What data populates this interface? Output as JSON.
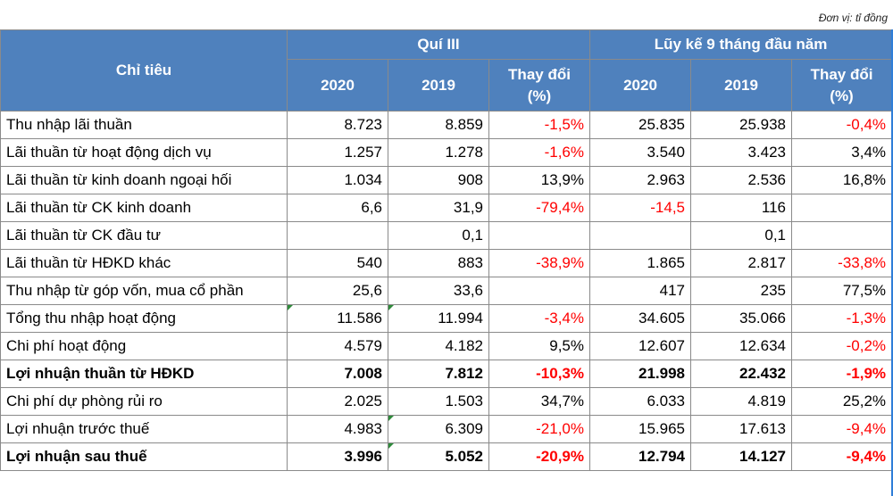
{
  "unit_note": "Đơn vị: tỉ đồng",
  "header": {
    "indicator": "Chỉ tiêu",
    "group_q3": "Quí III",
    "group_9m": "Lũy kế 9 tháng đầu năm",
    "q3_2020": "2020",
    "q3_2019": "2019",
    "q3_change_line1": "Thay đổi",
    "q3_change_line2": "(%)",
    "ytd_2020": "2020",
    "ytd_2019": "2019",
    "ytd_change_line1": "Thay đổi",
    "ytd_change_line2": "(%)"
  },
  "rows": [
    {
      "label": "Thu nhập lãi thuần",
      "q3_2020": "8.723",
      "q3_2019": "8.859",
      "q3_change": "-1,5%",
      "ytd_2020": "25.835",
      "ytd_2019": "25.938",
      "ytd_change": "-0,4%"
    },
    {
      "label": "Lãi thuần từ hoạt động dịch vụ",
      "q3_2020": "1.257",
      "q3_2019": "1.278",
      "q3_change": "-1,6%",
      "ytd_2020": "3.540",
      "ytd_2019": "3.423",
      "ytd_change": "3,4%"
    },
    {
      "label": "Lãi thuần từ kinh doanh ngoại hối",
      "q3_2020": "1.034",
      "q3_2019": "908",
      "q3_change": "13,9%",
      "ytd_2020": "2.963",
      "ytd_2019": "2.536",
      "ytd_change": "16,8%"
    },
    {
      "label": "Lãi thuần từ CK kinh doanh",
      "q3_2020": "6,6",
      "q3_2019": "31,9",
      "q3_change": "-79,4%",
      "ytd_2020": "-14,5",
      "ytd_2019": "116",
      "ytd_change": ""
    },
    {
      "label": "Lãi thuần từ CK đầu tư",
      "q3_2020": "",
      "q3_2019": "0,1",
      "q3_change": "",
      "ytd_2020": "",
      "ytd_2019": "0,1",
      "ytd_change": ""
    },
    {
      "label": "Lãi thuần từ HĐKD khác",
      "q3_2020": "540",
      "q3_2019": "883",
      "q3_change": "-38,9%",
      "ytd_2020": "1.865",
      "ytd_2019": "2.817",
      "ytd_change": "-33,8%"
    },
    {
      "label": "Thu nhập từ góp vốn, mua cổ phần",
      "q3_2020": "25,6",
      "q3_2019": "33,6",
      "q3_change": "",
      "ytd_2020": "417",
      "ytd_2019": "235",
      "ytd_change": "77,5%"
    },
    {
      "label": "Tổng thu nhập hoạt động",
      "q3_2020": "11.586",
      "q3_2019": "11.994",
      "q3_change": "-3,4%",
      "ytd_2020": "34.605",
      "ytd_2019": "35.066",
      "ytd_change": "-1,3%"
    },
    {
      "label": "Chi phí hoạt động",
      "q3_2020": "4.579",
      "q3_2019": "4.182",
      "q3_change": "9,5%",
      "ytd_2020": "12.607",
      "ytd_2019": "12.634",
      "ytd_change": "-0,2%"
    },
    {
      "label": "Lợi nhuận thuần từ HĐKD",
      "q3_2020": "7.008",
      "q3_2019": "7.812",
      "q3_change": "-10,3%",
      "ytd_2020": "21.998",
      "ytd_2019": "22.432",
      "ytd_change": "-1,9%"
    },
    {
      "label": "Chi phí dự phòng rủi ro",
      "q3_2020": "2.025",
      "q3_2019": "1.503",
      "q3_change": "34,7%",
      "ytd_2020": "6.033",
      "ytd_2019": "4.819",
      "ytd_change": "25,2%"
    },
    {
      "label": "Lợi nhuận trước thuế",
      "q3_2020": "4.983",
      "q3_2019": "6.309",
      "q3_change": "-21,0%",
      "ytd_2020": "15.965",
      "ytd_2019": "17.613",
      "ytd_change": "-9,4%"
    },
    {
      "label": "Lợi nhuận sau thuế",
      "q3_2020": "3.996",
      "q3_2019": "5.052",
      "q3_change": "-20,9%",
      "ytd_2020": "12.794",
      "ytd_2019": "14.127",
      "ytd_change": "-9,4%"
    }
  ],
  "colors": {
    "header_bg": "#4f81bd",
    "header_text": "#ffffff",
    "negative": "#ff0000",
    "grid": "#8a8a8a"
  }
}
